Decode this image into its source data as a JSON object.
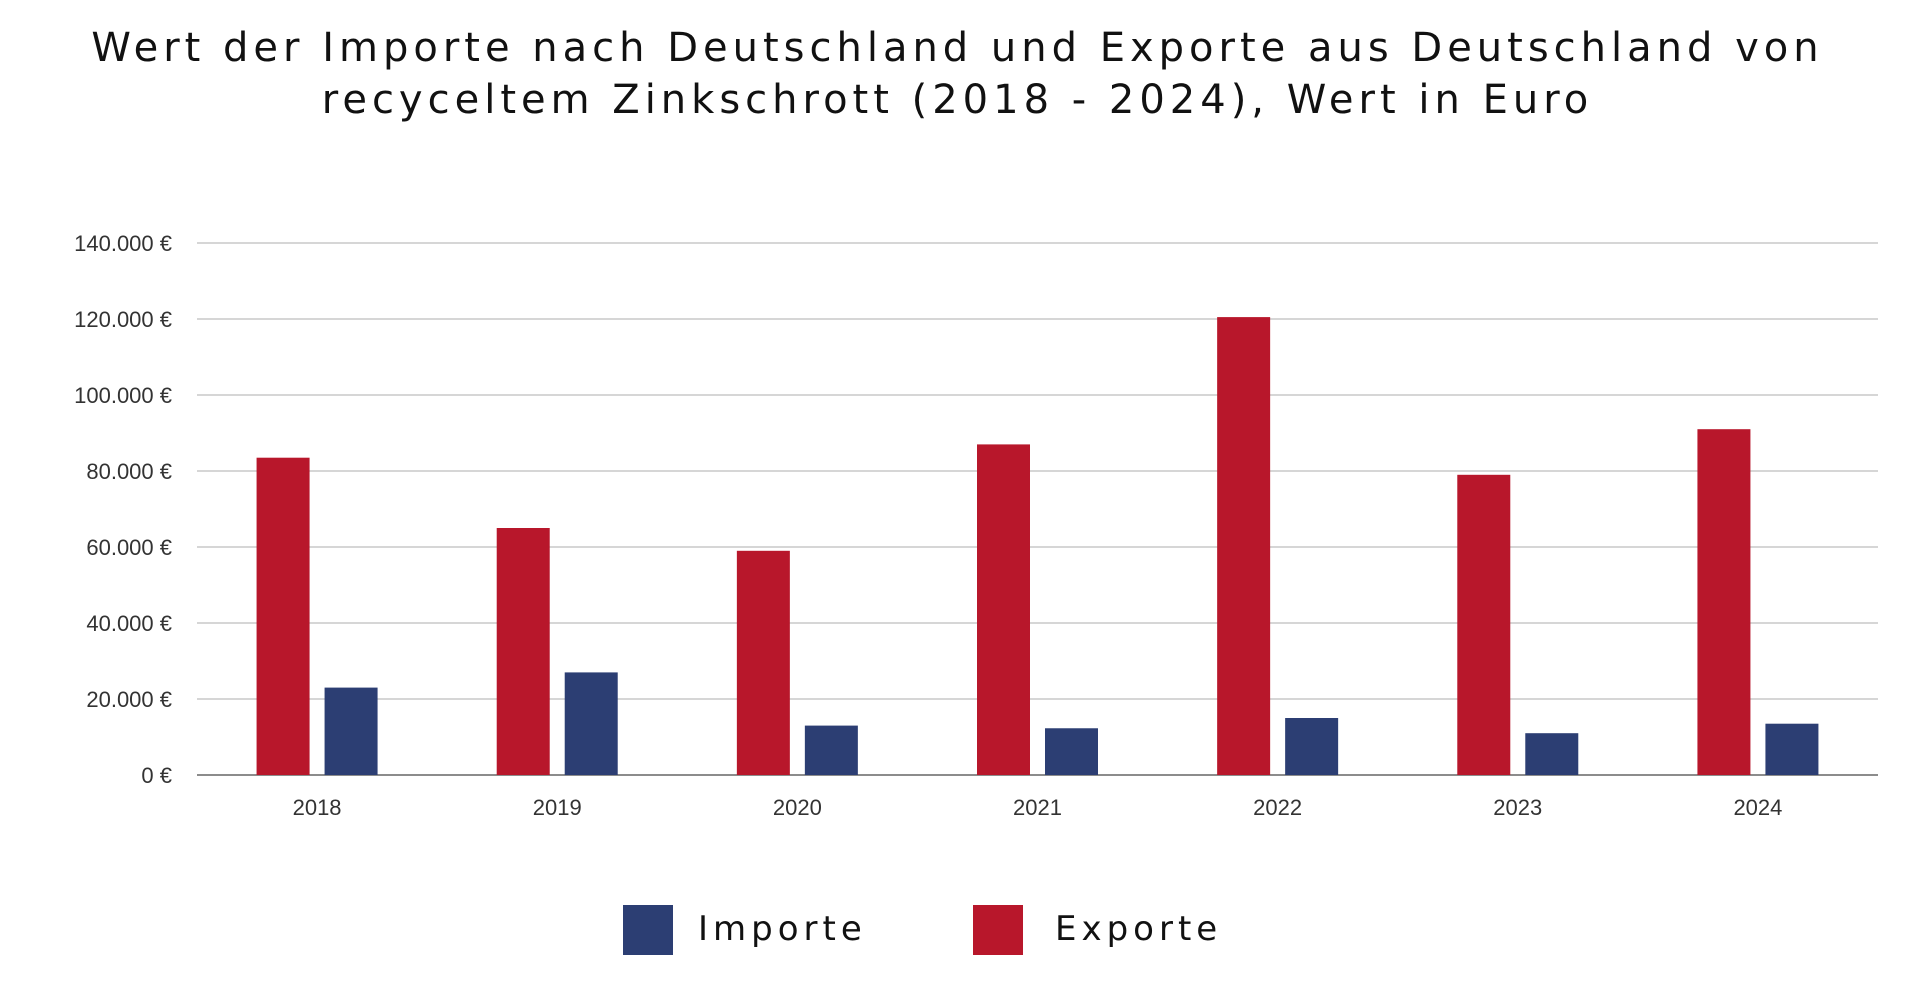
{
  "title_lines": [
    "Wert der Importe nach Deutschland und Exporte aus Deutschland von",
    "recyceltem Zinkschrott (2018 - 2024), Wert in Euro"
  ],
  "chart_data": {
    "type": "bar",
    "title": "Wert der Importe nach Deutschland und Exporte aus Deutschland von recyceltem Zinkschrott (2018 - 2024), Wert in Euro",
    "categories": [
      "2018",
      "2019",
      "2020",
      "2021",
      "2022",
      "2023",
      "2024"
    ],
    "series": [
      {
        "name": "Exporte",
        "color": "#B8172B",
        "values": [
          83500,
          65000,
          59000,
          87000,
          120500,
          79000,
          91000
        ]
      },
      {
        "name": "Importe",
        "color": "#2C3E73",
        "values": [
          23000,
          27000,
          13000,
          12300,
          15000,
          11000,
          13500
        ]
      }
    ],
    "ylim": [
      0,
      140000
    ],
    "yticks": [
      0,
      20000,
      40000,
      60000,
      80000,
      100000,
      120000,
      140000
    ],
    "ytick_labels": [
      "0 €",
      "20.000 €",
      "40.000 €",
      "60.000 €",
      "80.000 €",
      "100.000 €",
      "120.000 €",
      "140.000 €"
    ],
    "xlabel": "",
    "ylabel": "",
    "grid": true,
    "legend_position": "bottom-center"
  },
  "legend": [
    {
      "label": "Importe",
      "color": "#2C3E73"
    },
    {
      "label": "Exporte",
      "color": "#B8172B"
    }
  ]
}
